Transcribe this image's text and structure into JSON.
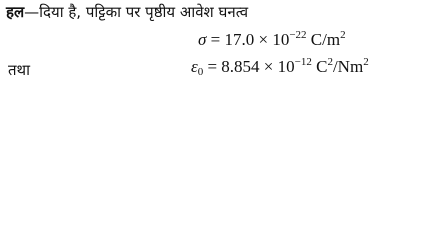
{
  "intro": {
    "label": "हल",
    "text": "—दिया है,  पट्टिका पर पृष्ठीय आवेश घनत्व"
  },
  "equations": [
    {
      "symbol": "σ",
      "expression": "= 17.0 × 10",
      "exponent": "−22",
      "unit": "C/m",
      "unit_exponent": "2"
    },
    {
      "prefix": "तथा",
      "symbol": "ε",
      "subscript": "0",
      "expression": "=  8.854 × 10",
      "exponent": "−12",
      "unit": "C",
      "unit_exponent": "2",
      "unit_rest": "/Nm",
      "unit_rest_exponent": "2"
    }
  ]
}
